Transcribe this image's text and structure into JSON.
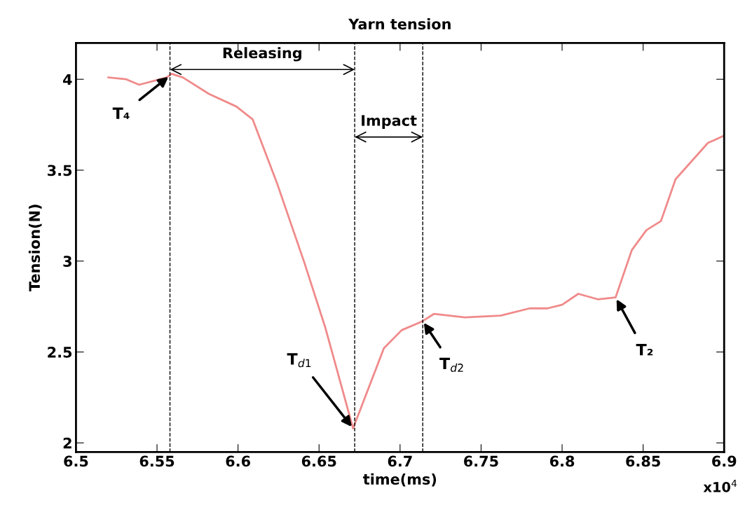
{
  "chart_data": {
    "type": "line",
    "title": "Yarn tension",
    "xlabel": "time(ms)",
    "ylabel": "Tension(N)",
    "series": [
      {
        "color": "#f08a8a",
        "x": [
          6.52,
          6.531,
          6.539,
          6.556,
          6.559,
          6.566,
          6.582,
          6.599,
          6.609,
          6.624,
          6.641,
          6.654,
          6.671,
          6.69,
          6.701,
          6.714,
          6.721,
          6.74,
          6.762,
          6.78,
          6.791,
          6.8,
          6.81,
          6.822,
          6.833,
          6.843,
          6.852,
          6.861,
          6.87,
          6.88,
          6.89,
          6.9
        ],
        "values": [
          4.01,
          4.0,
          3.97,
          4.01,
          4.03,
          4.01,
          3.92,
          3.85,
          3.78,
          3.43,
          2.99,
          2.63,
          2.08,
          2.52,
          2.62,
          2.67,
          2.71,
          2.69,
          2.7,
          2.74,
          2.74,
          2.76,
          2.82,
          2.79,
          2.8,
          3.06,
          3.17,
          3.22,
          3.45,
          3.55,
          3.65,
          3.69
        ]
      }
    ],
    "xlim": [
      6.5,
      6.9
    ],
    "ylim": [
      1.95,
      4.2
    ],
    "xticks": [
      6.5,
      6.55,
      6.6,
      6.65,
      6.7,
      6.75,
      6.8,
      6.85,
      6.9
    ],
    "yticks": [
      2,
      2.5,
      3,
      3.5,
      4
    ],
    "grid": false,
    "legend": false,
    "marker": "none",
    "line_style": "solid",
    "ref_lines": [
      {
        "axis": "x",
        "value": 6.558,
        "color": "#000000",
        "line_style": "dashed"
      },
      {
        "axis": "x",
        "value": 6.672,
        "color": "#000000",
        "line_style": "dashed"
      },
      {
        "axis": "x",
        "value": 6.714,
        "color": "#000000",
        "line_style": "dashed"
      }
    ],
    "annotations": [
      "Releasing",
      "Impact",
      {
        "text": "T₄",
        "x": 6.558,
        "y": 4.02
      },
      {
        "text": "T$_{d1}$",
        "x": 6.671,
        "y": 2.08
      },
      {
        "text": "T$_{d2}$",
        "x": 6.714,
        "y": 2.67
      },
      {
        "text": "T₂",
        "x": 6.833,
        "y": 2.8
      },
      "x10$^{4}$"
    ]
  }
}
